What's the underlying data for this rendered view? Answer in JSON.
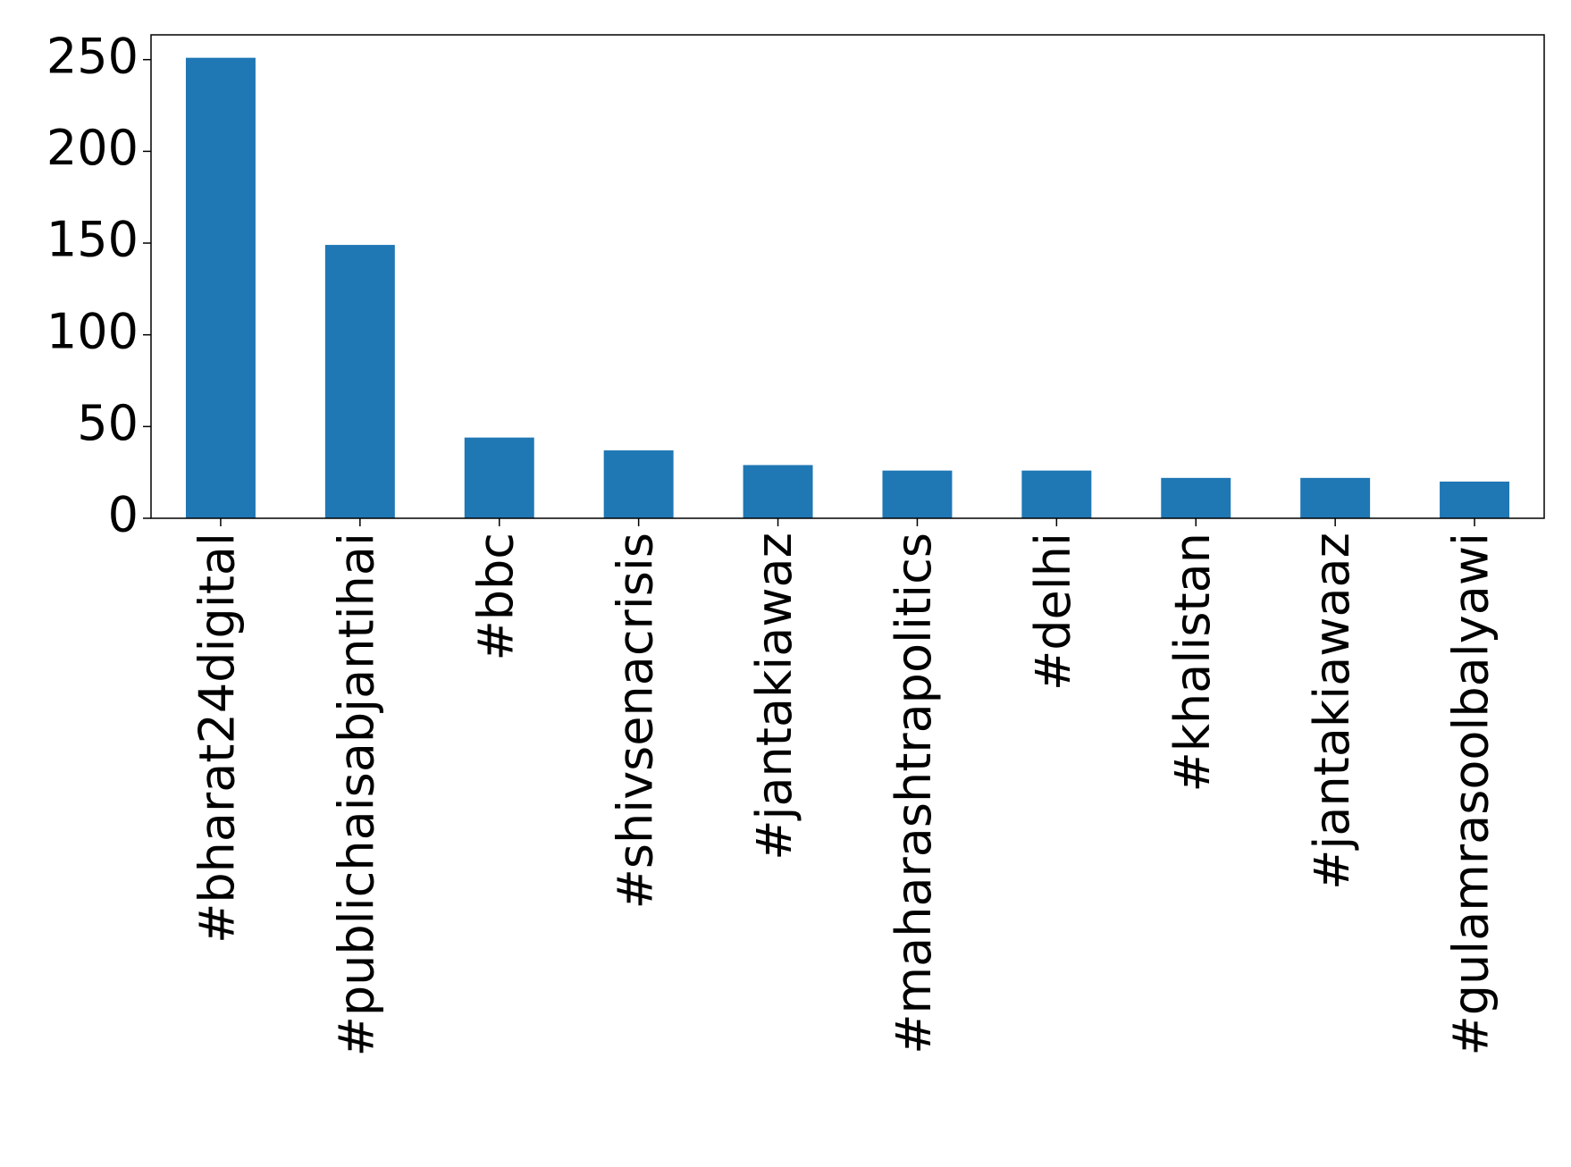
{
  "chart_data": {
    "type": "bar",
    "categories": [
      "#bharat24digital",
      "#publichaisabjantihai",
      "#bbc",
      "#shivsenacrisis",
      "#jantakiawaz",
      "#maharashtrapolitics",
      "#delhi",
      "#khalistan",
      "#jantakiawaaz",
      "#gulamrasoolbalyawi"
    ],
    "values": [
      251,
      149,
      44,
      37,
      29,
      26,
      26,
      22,
      22,
      20
    ],
    "color": "#1f77b4",
    "ylim": [
      0,
      263.5
    ],
    "yticks": [
      0,
      50,
      100,
      150,
      200,
      250
    ],
    "grid": false
  }
}
